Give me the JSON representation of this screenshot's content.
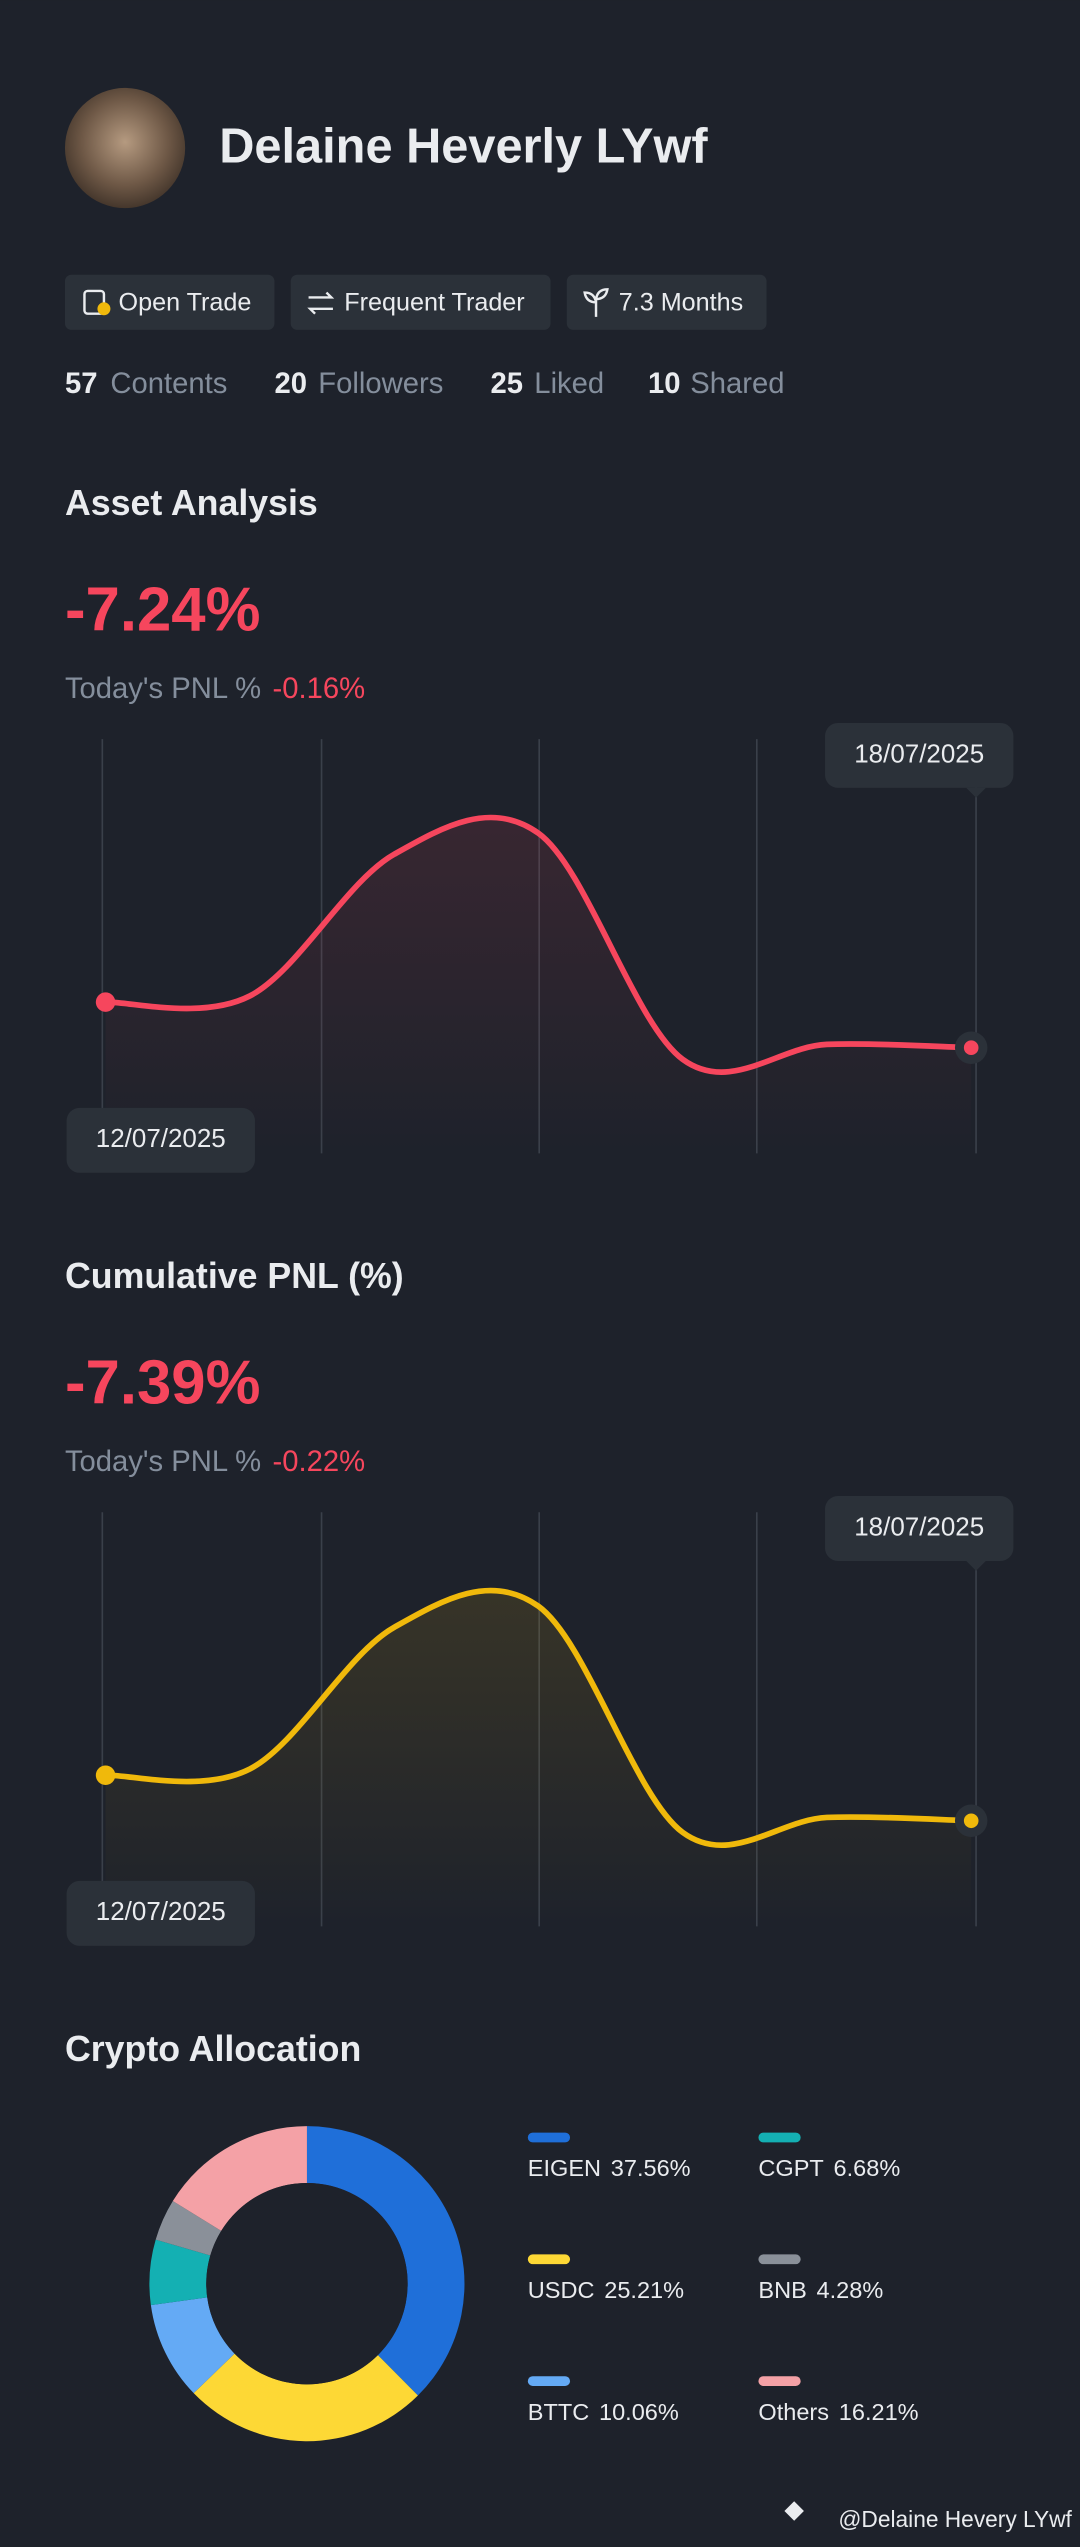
{
  "profile": {
    "name": "Delaine Heverly LYwf",
    "badges": [
      "Open Trade",
      "Frequent Trader",
      "7.3 Months"
    ],
    "stats": [
      {
        "count": 57,
        "label": "Contents"
      },
      {
        "count": 20,
        "label": "Followers"
      },
      {
        "count": 25,
        "label": "Liked"
      },
      {
        "count": 10,
        "label": "Shared"
      }
    ]
  },
  "chart_data": [
    {
      "type": "line",
      "title": "Asset Analysis",
      "headline": "-7.24%",
      "pnl_label": "Today's PNL %",
      "pnl_value": "-0.16%",
      "categories": [
        "12/07/2025",
        null,
        null,
        null,
        null,
        null,
        "18/07/2025"
      ],
      "values": [
        -6.35,
        -6.2,
        -2.78,
        -2.27,
        -7.73,
        -7.37,
        -7.45
      ],
      "color": "#f6465d",
      "ylim": [
        -10,
        0
      ]
    },
    {
      "type": "line",
      "title": "Cumulative PNL (%)",
      "headline": "-7.39%",
      "pnl_label": "Today's PNL %",
      "pnl_value": "-0.22%",
      "categories": [
        "12/07/2025",
        null,
        null,
        null,
        null,
        null,
        "18/07/2025"
      ],
      "values": [
        -6.35,
        -6.2,
        -2.78,
        -2.27,
        -7.73,
        -7.37,
        -7.45
      ],
      "color": "#f0b90b",
      "ylim": [
        -10,
        0
      ]
    },
    {
      "type": "pie",
      "title": "Crypto Allocation",
      "categories": [
        "EIGEN",
        "USDC",
        "BTTC",
        "CGPT",
        "BNB",
        "Others"
      ],
      "values": [
        37.56,
        25.21,
        10.06,
        6.68,
        4.28,
        16.21
      ],
      "value_labels": [
        "37.56%",
        "25.21%",
        "10.06%",
        "6.68%",
        "4.28%",
        "16.21%"
      ],
      "colors": [
        "#1f6fd9",
        "#fdd835",
        "#64aaf5",
        "#14b0b3",
        "#8a9099",
        "#f4a1a6"
      ]
    }
  ],
  "watermark": "@Delaine Hevery LYwf"
}
